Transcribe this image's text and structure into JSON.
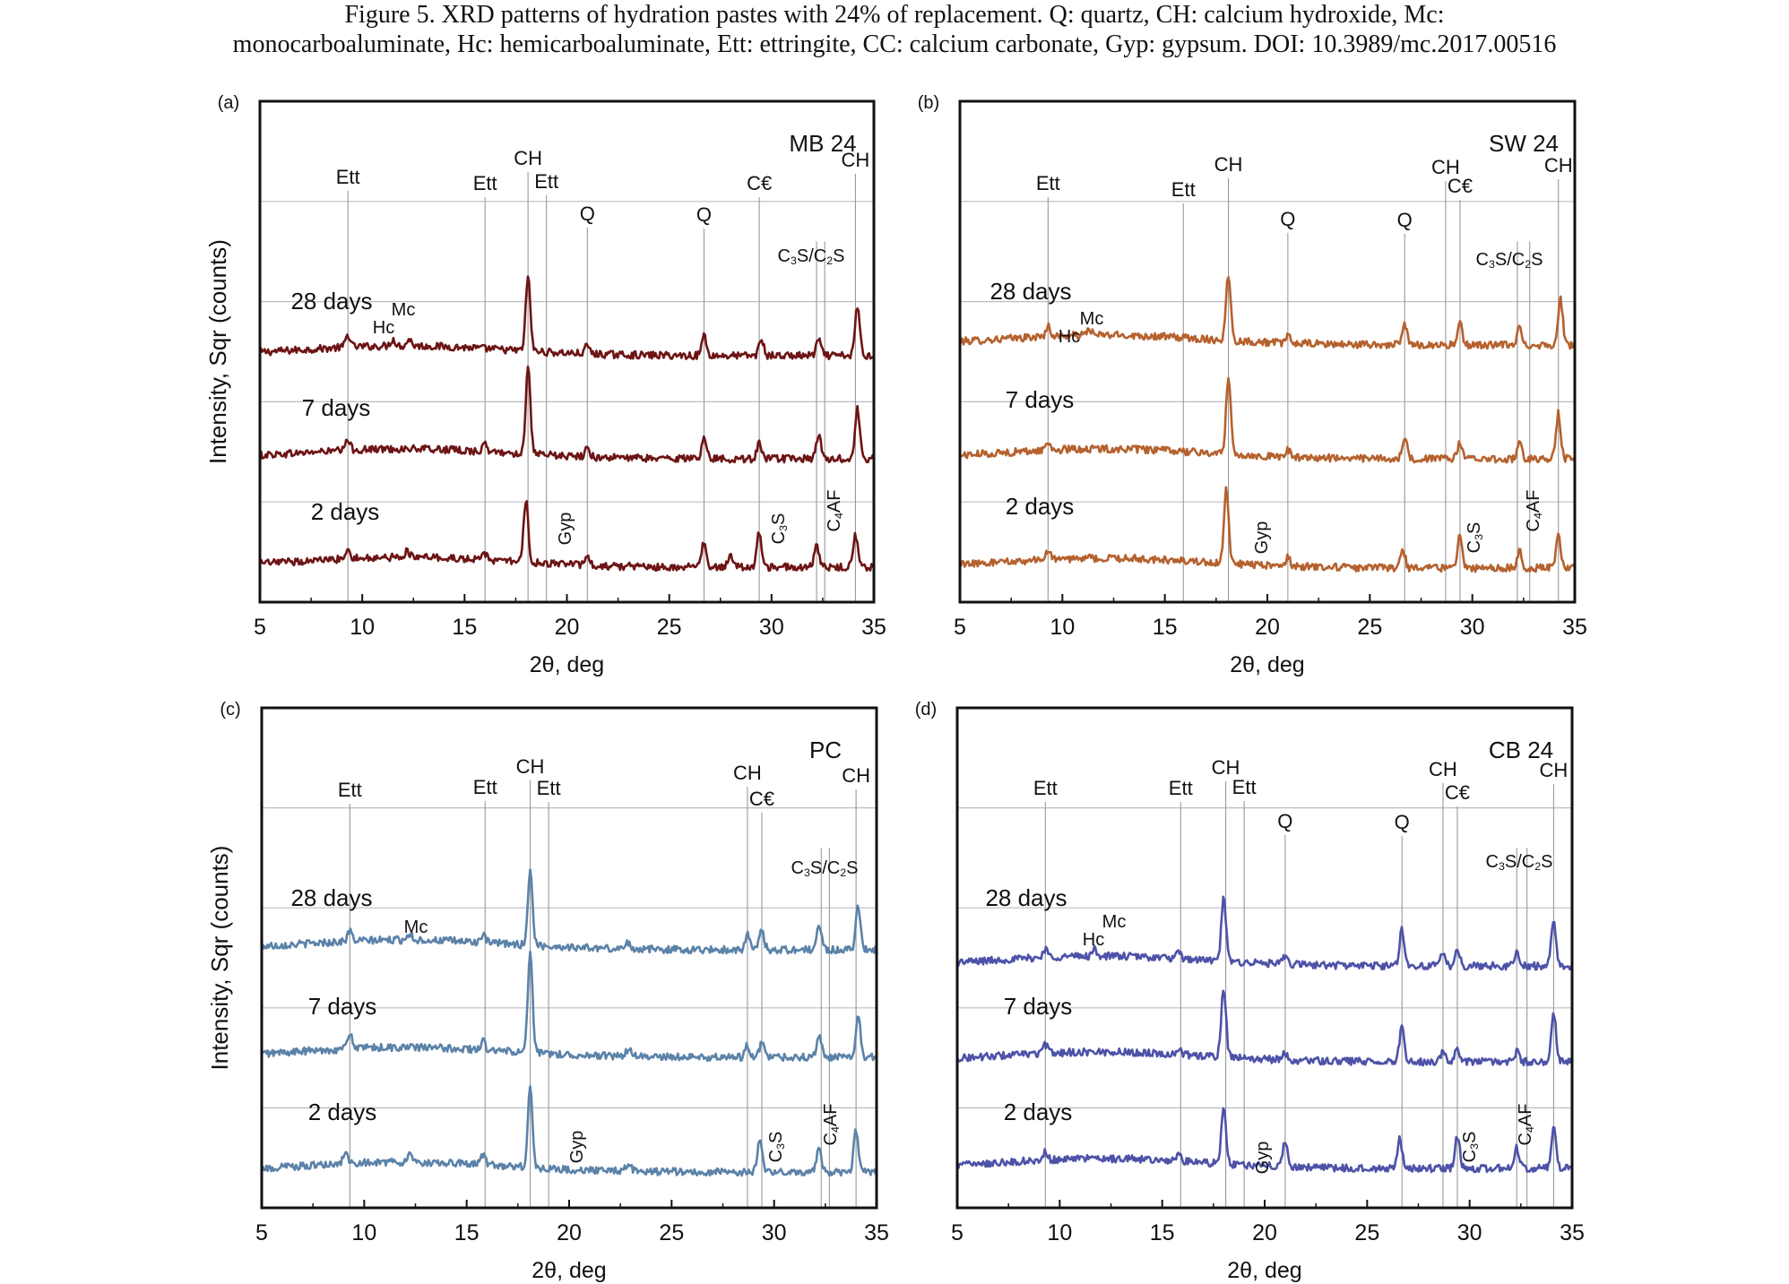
{
  "caption": {
    "line1": "Figure 5.    XRD patterns of hydration pastes with 24% of replacement. Q: quartz, CH: calcium hydroxide, Mc:",
    "line2": "monocarboaluminate, Hc: hemicarboaluminate, Ett: ettringite, CC: calcium carbonate, Gyp: gypsum. DOI: 10.3989/mc.2017.00516"
  },
  "colors": {
    "a": "#6d1414",
    "b": "#b5612e",
    "c": "#5b82a8",
    "d": "#4d52a8",
    "gridline": "#b9bdc8",
    "refline": "#9a9a9a"
  },
  "chart_data": [
    {
      "type": "line",
      "panel": "(a)",
      "sample": "MB 24",
      "xlabel": "2θ, deg",
      "ylabel": "Intensity, Sqr (counts)",
      "xlim": [
        5,
        35
      ],
      "xticks": [
        5,
        10,
        15,
        20,
        25,
        30,
        35
      ],
      "series": [
        {
          "name": "28 days",
          "offset": 2.0,
          "baseline": 0.3,
          "peaks": [
            [
              9.3,
              0.15
            ],
            [
              11.5,
              0.08
            ],
            [
              12.3,
              0.08
            ],
            [
              18.1,
              0.9
            ],
            [
              21.0,
              0.1
            ],
            [
              26.7,
              0.25
            ],
            [
              29.5,
              0.2
            ],
            [
              32.3,
              0.2
            ],
            [
              34.2,
              0.6
            ]
          ]
        },
        {
          "name": "7 days",
          "offset": 1.0,
          "baseline": 0.3,
          "peaks": [
            [
              9.3,
              0.12
            ],
            [
              16.0,
              0.08
            ],
            [
              18.1,
              1.05
            ],
            [
              21.0,
              0.1
            ],
            [
              26.7,
              0.28
            ],
            [
              29.4,
              0.18
            ],
            [
              32.3,
              0.28
            ],
            [
              34.2,
              0.6
            ]
          ]
        },
        {
          "name": "2 days",
          "offset": 0.0,
          "baseline": 0.2,
          "peaks": [
            [
              9.3,
              0.12
            ],
            [
              12.2,
              0.08
            ],
            [
              16.0,
              0.08
            ],
            [
              18.0,
              0.75
            ],
            [
              21.0,
              0.08
            ],
            [
              26.7,
              0.3
            ],
            [
              28.0,
              0.15
            ],
            [
              29.4,
              0.42
            ],
            [
              32.2,
              0.25
            ],
            [
              34.1,
              0.4
            ]
          ]
        }
      ],
      "ref_lines": [
        {
          "x": 9.3,
          "label": "Ett"
        },
        {
          "x": 16.0,
          "label": "Ett"
        },
        {
          "x": 18.1,
          "label": "CH"
        },
        {
          "x": 19.0,
          "label": "Ett"
        },
        {
          "x": 21.0,
          "label": "Q"
        },
        {
          "x": 26.7,
          "label": "Q"
        },
        {
          "x": 29.4,
          "label": "C€"
        },
        {
          "x": 32.2,
          "label": ""
        },
        {
          "x": 32.6,
          "label": ""
        },
        {
          "x": 34.1,
          "label": "CH"
        }
      ],
      "annotations": [
        "C3S/C2S",
        "Hc",
        "Mc",
        "Gyp",
        "C3S",
        "C4AF"
      ]
    },
    {
      "type": "line",
      "panel": "(b)",
      "sample": "SW 24",
      "xlabel": "2θ, deg",
      "ylabel": "",
      "xlim": [
        5,
        35
      ],
      "xticks": [
        5,
        10,
        15,
        20,
        25,
        30,
        35
      ],
      "series": [
        {
          "name": "28 days",
          "offset": 2.0,
          "baseline": 0.3,
          "peaks": [
            [
              9.3,
              0.12
            ],
            [
              11.3,
              0.08
            ],
            [
              18.1,
              0.8
            ],
            [
              21.0,
              0.08
            ],
            [
              26.7,
              0.25
            ],
            [
              29.4,
              0.25
            ],
            [
              32.3,
              0.2
            ],
            [
              34.3,
              0.55
            ]
          ]
        },
        {
          "name": "7 days",
          "offset": 1.0,
          "baseline": 0.3,
          "peaks": [
            [
              9.3,
              0.1
            ],
            [
              18.1,
              0.95
            ],
            [
              21.0,
              0.08
            ],
            [
              26.7,
              0.25
            ],
            [
              29.4,
              0.2
            ],
            [
              32.3,
              0.18
            ],
            [
              34.2,
              0.55
            ]
          ]
        },
        {
          "name": "2 days",
          "offset": 0.0,
          "baseline": 0.2,
          "peaks": [
            [
              9.3,
              0.1
            ],
            [
              18.0,
              0.9
            ],
            [
              21.0,
              0.1
            ],
            [
              26.6,
              0.25
            ],
            [
              29.4,
              0.4
            ],
            [
              32.3,
              0.2
            ],
            [
              34.2,
              0.4
            ]
          ]
        }
      ],
      "ref_lines": [
        {
          "x": 9.3,
          "label": "Ett"
        },
        {
          "x": 15.9,
          "label": "Ett"
        },
        {
          "x": 18.1,
          "label": "CH"
        },
        {
          "x": 21.0,
          "label": "Q"
        },
        {
          "x": 26.7,
          "label": "Q"
        },
        {
          "x": 28.7,
          "label": "CH"
        },
        {
          "x": 29.4,
          "label": "C€"
        },
        {
          "x": 32.2,
          "label": ""
        },
        {
          "x": 32.8,
          "label": ""
        },
        {
          "x": 34.2,
          "label": "CH"
        }
      ],
      "annotations": [
        "C3S/C2S",
        "Hc",
        "Mc",
        "Gyp",
        "C3S",
        "C4AF"
      ]
    },
    {
      "type": "line",
      "panel": "(c)",
      "sample": "PC",
      "xlabel": "2θ, deg",
      "ylabel": "Intensity, Sqr (counts)",
      "xlim": [
        5,
        35
      ],
      "xticks": [
        5,
        10,
        15,
        20,
        25,
        30,
        35
      ],
      "series": [
        {
          "name": "28 days",
          "offset": 2.0,
          "baseline": 0.3,
          "peaks": [
            [
              9.3,
              0.12
            ],
            [
              12.2,
              0.08
            ],
            [
              15.8,
              0.08
            ],
            [
              18.1,
              0.9
            ],
            [
              22.9,
              0.08
            ],
            [
              28.7,
              0.18
            ],
            [
              29.4,
              0.25
            ],
            [
              32.2,
              0.3
            ],
            [
              34.1,
              0.55
            ]
          ]
        },
        {
          "name": "7 days",
          "offset": 1.0,
          "baseline": 0.3,
          "peaks": [
            [
              9.3,
              0.2
            ],
            [
              15.8,
              0.1
            ],
            [
              18.1,
              1.2
            ],
            [
              22.9,
              0.1
            ],
            [
              28.7,
              0.15
            ],
            [
              29.4,
              0.18
            ],
            [
              32.2,
              0.25
            ],
            [
              34.1,
              0.5
            ]
          ]
        },
        {
          "name": "2 days",
          "offset": 0.0,
          "baseline": 0.2,
          "peaks": [
            [
              9.1,
              0.15
            ],
            [
              12.2,
              0.1
            ],
            [
              15.8,
              0.1
            ],
            [
              18.1,
              0.95
            ],
            [
              22.9,
              0.1
            ],
            [
              29.3,
              0.38
            ],
            [
              32.2,
              0.3
            ],
            [
              34.0,
              0.5
            ]
          ]
        }
      ],
      "ref_lines": [
        {
          "x": 9.3,
          "label": "Ett"
        },
        {
          "x": 15.9,
          "label": "Ett"
        },
        {
          "x": 18.1,
          "label": "CH"
        },
        {
          "x": 19.0,
          "label": "Ett"
        },
        {
          "x": 28.7,
          "label": "CH"
        },
        {
          "x": 29.4,
          "label": "C€"
        },
        {
          "x": 32.3,
          "label": ""
        },
        {
          "x": 32.7,
          "label": ""
        },
        {
          "x": 34.0,
          "label": "CH"
        }
      ],
      "annotations": [
        "C3S/C2S",
        "Mc",
        "Gyp",
        "C3S",
        "C4AF"
      ]
    },
    {
      "type": "line",
      "panel": "(d)",
      "sample": "CB 24",
      "xlabel": "2θ, deg",
      "ylabel": "",
      "xlim": [
        5,
        35
      ],
      "xticks": [
        5,
        10,
        15,
        20,
        25,
        30,
        35
      ],
      "series": [
        {
          "name": "28 days",
          "offset": 2.0,
          "baseline": 0.3,
          "peaks": [
            [
              9.3,
              0.1
            ],
            [
              11.7,
              0.08
            ],
            [
              15.8,
              0.06
            ],
            [
              18.0,
              0.75
            ],
            [
              21.0,
              0.08
            ],
            [
              26.7,
              0.45
            ],
            [
              28.7,
              0.15
            ],
            [
              29.4,
              0.2
            ],
            [
              32.3,
              0.15
            ],
            [
              34.1,
              0.55
            ]
          ]
        },
        {
          "name": "7 days",
          "offset": 1.0,
          "baseline": 0.3,
          "peaks": [
            [
              9.3,
              0.1
            ],
            [
              15.8,
              0.06
            ],
            [
              18.0,
              0.85
            ],
            [
              21.0,
              0.08
            ],
            [
              26.7,
              0.45
            ],
            [
              28.7,
              0.12
            ],
            [
              29.4,
              0.15
            ],
            [
              32.3,
              0.12
            ],
            [
              34.1,
              0.6
            ]
          ]
        },
        {
          "name": "2 days",
          "offset": 0.0,
          "baseline": 0.2,
          "peaks": [
            [
              9.3,
              0.1
            ],
            [
              15.8,
              0.08
            ],
            [
              18.0,
              0.7
            ],
            [
              21.0,
              0.3
            ],
            [
              26.6,
              0.35
            ],
            [
              29.4,
              0.4
            ],
            [
              32.3,
              0.25
            ],
            [
              34.1,
              0.5
            ]
          ]
        }
      ],
      "ref_lines": [
        {
          "x": 9.3,
          "label": "Ett"
        },
        {
          "x": 15.9,
          "label": "Ett"
        },
        {
          "x": 18.1,
          "label": "CH"
        },
        {
          "x": 19.0,
          "label": "Ett"
        },
        {
          "x": 21.0,
          "label": "Q"
        },
        {
          "x": 26.7,
          "label": "Q"
        },
        {
          "x": 28.7,
          "label": "CH"
        },
        {
          "x": 29.4,
          "label": "C€"
        },
        {
          "x": 32.3,
          "label": ""
        },
        {
          "x": 32.8,
          "label": ""
        },
        {
          "x": 34.1,
          "label": "CH"
        }
      ],
      "annotations": [
        "C3S/C2S",
        "Hc",
        "Mc",
        "Gyp",
        "C3S",
        "C4AF"
      ]
    }
  ]
}
